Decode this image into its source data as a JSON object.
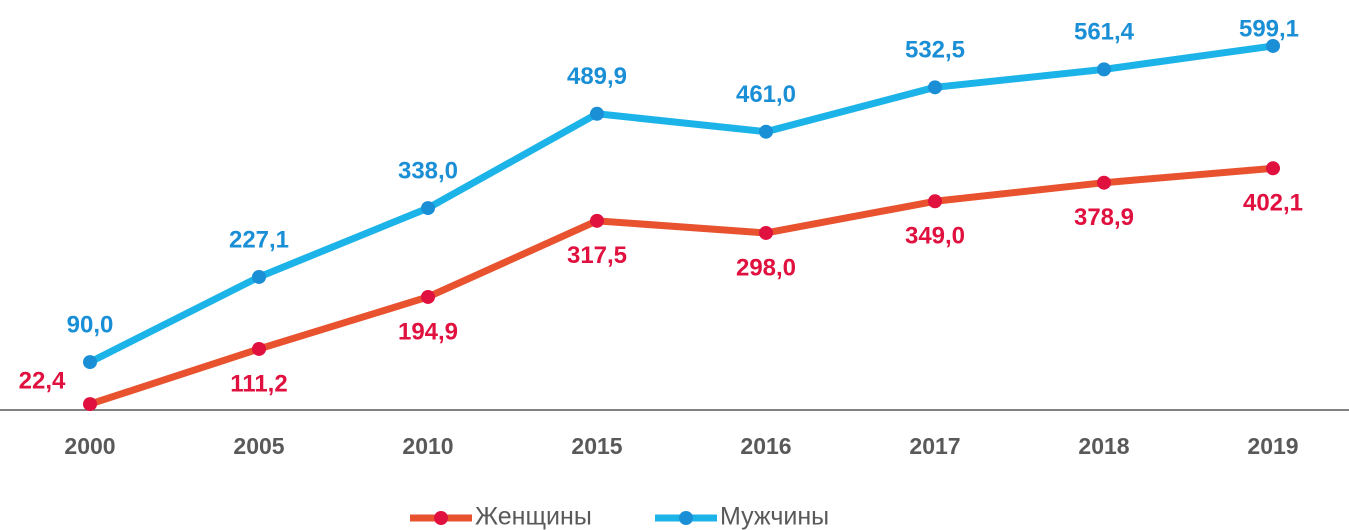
{
  "chart_data": {
    "type": "line",
    "categories": [
      "2000",
      "2005",
      "2010",
      "2015",
      "2016",
      "2017",
      "2018",
      "2019"
    ],
    "series": [
      {
        "name": "Женщины",
        "color": "#e8522f",
        "marker_color": "#e0103f",
        "label_color": "#e0103f",
        "values": [
          22.4,
          111.2,
          194.9,
          317.5,
          298.0,
          349.0,
          378.9,
          402.1
        ],
        "value_labels": [
          "22,4",
          "111,2",
          "194,9",
          "317,5",
          "298,0",
          "349,0",
          "378,9",
          "402,1"
        ]
      },
      {
        "name": "Мужчины",
        "color": "#1cb4e8",
        "marker_color": "#1a8fd6",
        "label_color": "#1a8fd6",
        "values": [
          90.0,
          227.1,
          338.0,
          489.9,
          461.0,
          532.5,
          561.4,
          599.1
        ],
        "value_labels": [
          "90,0",
          "227,1",
          "338,0",
          "489,9",
          "461,0",
          "532,5",
          "561,4",
          "599,1"
        ]
      }
    ],
    "ylim": [
      0,
      600
    ],
    "legend": "bottom"
  }
}
